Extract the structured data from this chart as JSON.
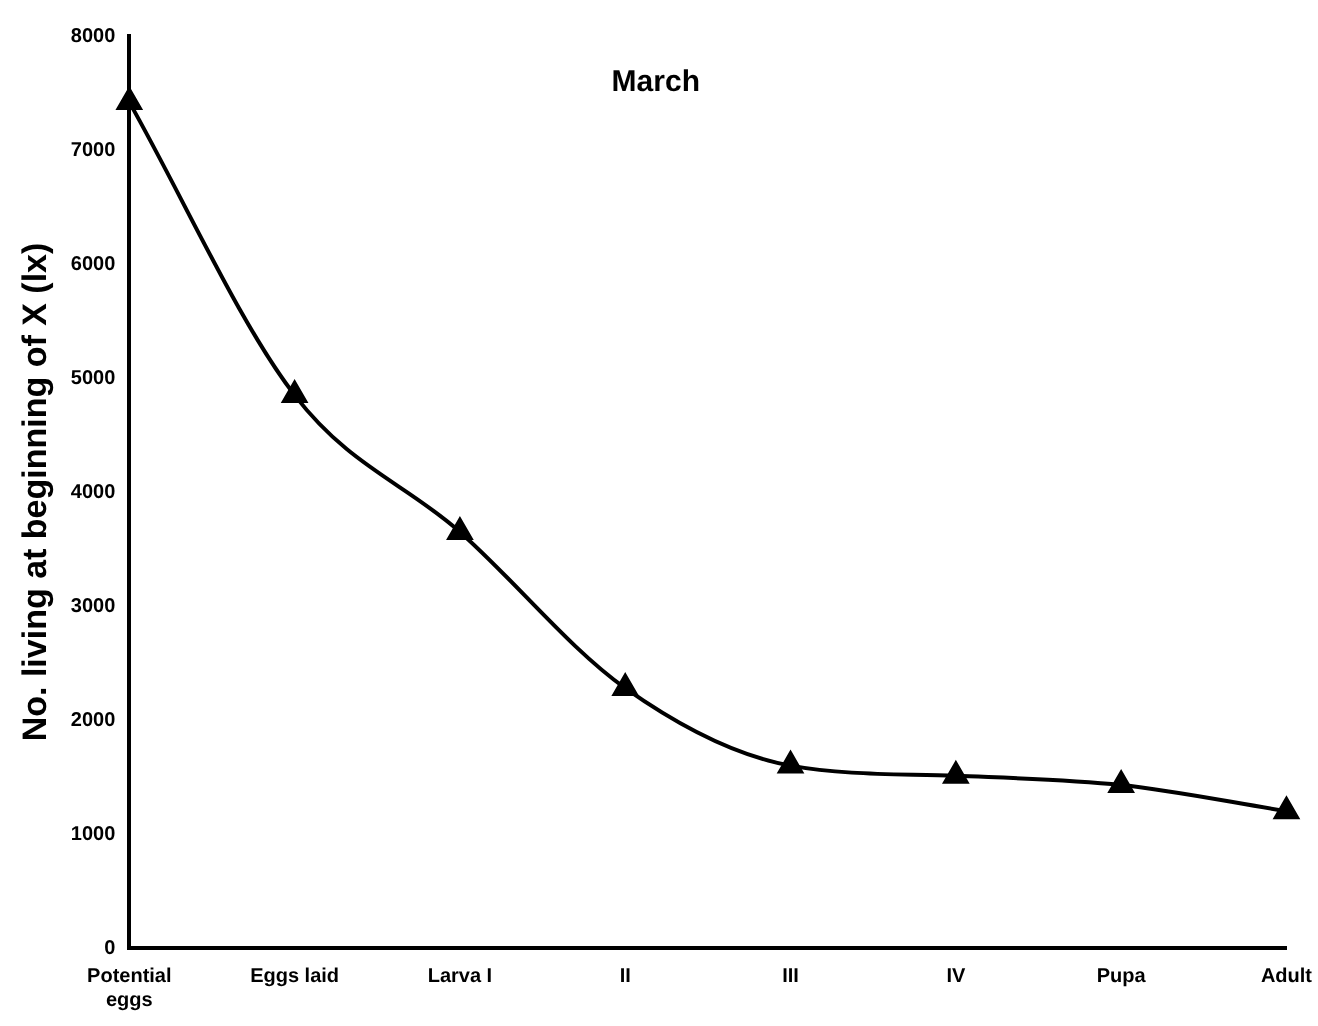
{
  "chart_data": {
    "type": "line",
    "title": "March",
    "ylabel": "No. living at beginning of X (lx)",
    "categories": [
      "Potential eggs",
      "Eggs laid",
      "Larva I",
      "II",
      "III",
      "IV",
      "Pupa",
      "Adult"
    ],
    "series": [
      {
        "color": "#000000",
        "values": [
          7420,
          4850,
          3650,
          2280,
          1600,
          1510,
          1430,
          1200
        ]
      }
    ],
    "ylim": [
      0,
      8000
    ],
    "yticks": [
      0,
      1000,
      2000,
      3000,
      4000,
      5000,
      6000,
      7000,
      8000
    ],
    "grid": false,
    "legend": false,
    "marker": "triangle",
    "line_style": "solid"
  }
}
